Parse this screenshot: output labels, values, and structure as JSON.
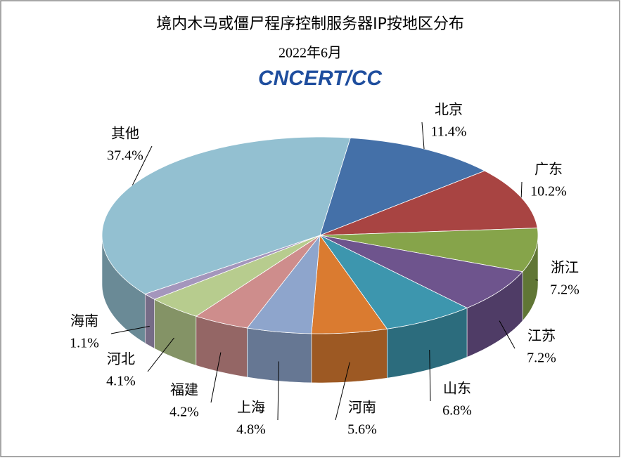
{
  "chart_data": {
    "type": "pie",
    "title": "境内木马或僵尸程序控制服务器IP按地区分布",
    "subtitle": "2022年6月",
    "logo": "CNCERT/CC",
    "categories": [
      "北京",
      "广东",
      "浙江",
      "江苏",
      "山东",
      "河南",
      "上海",
      "福建",
      "河北",
      "海南",
      "其他"
    ],
    "values": [
      11.4,
      10.2,
      7.2,
      7.2,
      6.8,
      5.6,
      4.8,
      4.2,
      4.1,
      1.1,
      37.4
    ],
    "value_labels": [
      "11.4%",
      "10.2%",
      "7.2%",
      "7.2%",
      "6.8%",
      "5.6%",
      "4.8%",
      "4.2%",
      "4.1%",
      "1.1%",
      "37.4%"
    ],
    "colors": [
      "#4470a8",
      "#a84442",
      "#86a44a",
      "#6e548d",
      "#3d96ae",
      "#da7b30",
      "#8ea5cc",
      "#ce8d8c",
      "#b7cc8e",
      "#a496bc",
      "#93c0d1"
    ]
  }
}
